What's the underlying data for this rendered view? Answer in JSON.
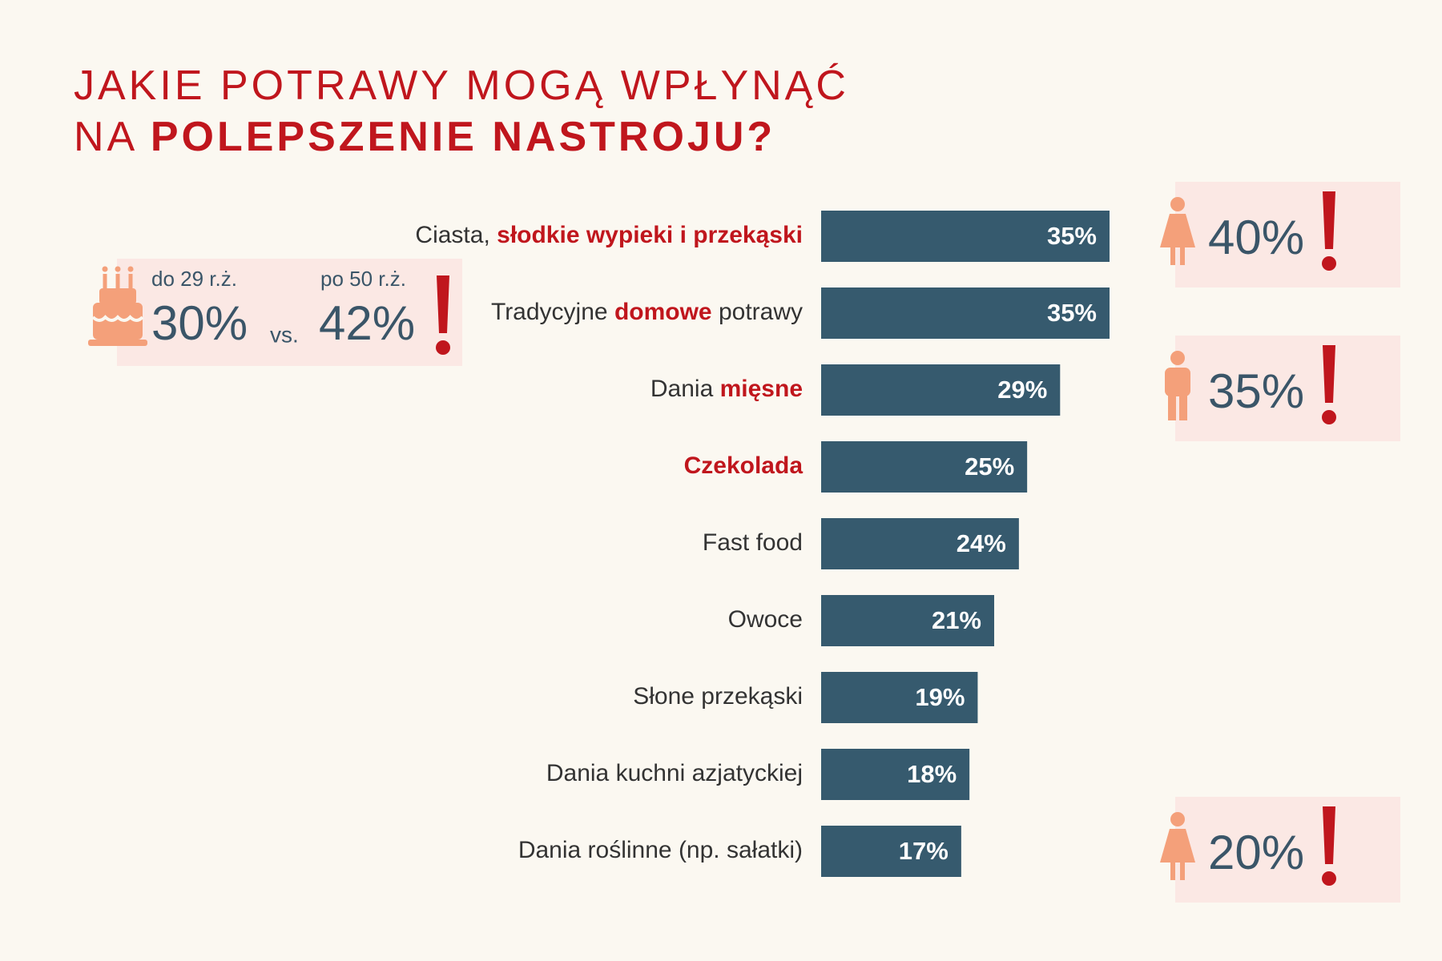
{
  "chart_data": {
    "type": "bar",
    "title": [
      [
        {
          "text": "JAKIE POTRAWY MOGĄ WPŁYNĄĆ",
          "emphasis": false
        }
      ],
      [
        {
          "text": "NA ",
          "emphasis": false
        },
        {
          "text": "POLEPSZENIE NASTROJU?",
          "emphasis": true
        }
      ]
    ],
    "categories": [
      [
        {
          "text": "Ciasta, ",
          "emphasis": false
        },
        {
          "text": "słodkie wypieki i przekąski",
          "emphasis": true
        }
      ],
      [
        {
          "text": "Tradycyjne ",
          "emphasis": false
        },
        {
          "text": "domowe",
          "emphasis": true
        },
        {
          "text": " potrawy",
          "emphasis": false
        }
      ],
      [
        {
          "text": "Dania ",
          "emphasis": false
        },
        {
          "text": "mięsne",
          "emphasis": true
        }
      ],
      [
        {
          "text": "Czekolada",
          "emphasis": true
        }
      ],
      [
        {
          "text": "Fast food",
          "emphasis": false
        }
      ],
      [
        {
          "text": "Owoce",
          "emphasis": false
        }
      ],
      [
        {
          "text": "Słone przekąski",
          "emphasis": false
        }
      ],
      [
        {
          "text": "Dania kuchni azjatyckiej",
          "emphasis": false
        }
      ],
      [
        {
          "text": "Dania roślinne (np. sałatki)",
          "emphasis": false
        }
      ]
    ],
    "values": [
      35,
      35,
      29,
      25,
      24,
      21,
      19,
      18,
      17
    ],
    "value_labels": [
      "35%",
      "35%",
      "29%",
      "25%",
      "24%",
      "21%",
      "19%",
      "18%",
      "17%"
    ],
    "color": "#365a6e",
    "xlim": [
      0,
      35
    ],
    "callouts": [
      {
        "category": 0,
        "icon": "female",
        "label": "40%"
      },
      {
        "category": 2,
        "icon": "male",
        "label": "35%"
      },
      {
        "category": 8,
        "icon": "female",
        "label": "20%"
      }
    ],
    "age_callout": {
      "left_label": "do 29 r.ż.",
      "left_value": "30%",
      "separator": "vs.",
      "right_label": "po 50 r.ż.",
      "right_value": "42%"
    }
  }
}
